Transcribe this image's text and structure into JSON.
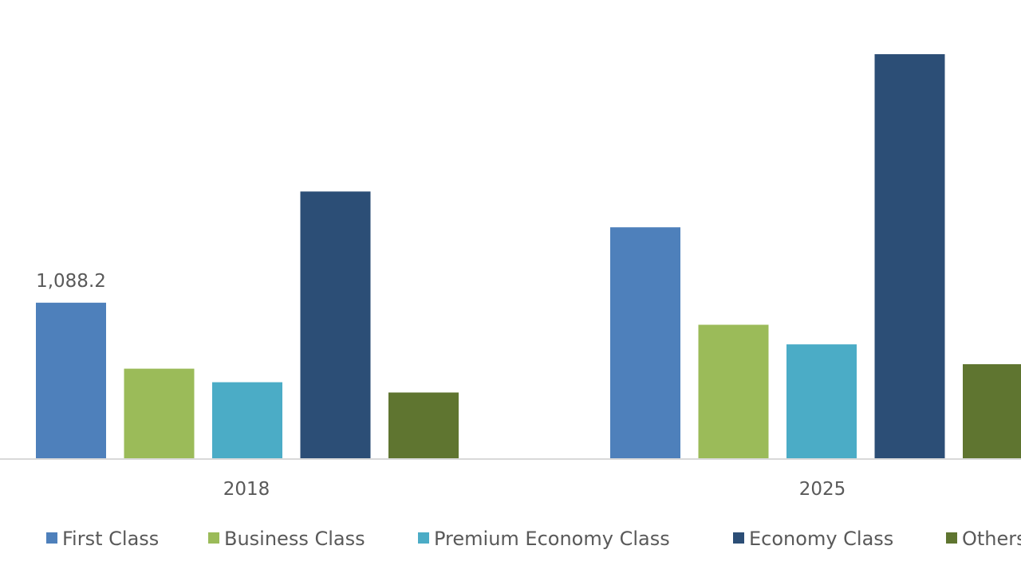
{
  "chart_data": {
    "type": "bar",
    "categories": [
      "2018",
      "2025"
    ],
    "series": [
      {
        "name": "First Class",
        "color": "#4e80bb",
        "values": [
          1088.2,
          1616
        ]
      },
      {
        "name": "Business Class",
        "color": "#9bbb59",
        "values": [
          627,
          934
        ]
      },
      {
        "name": "Premium Economy Class",
        "color": "#4bacc6",
        "values": [
          532,
          797
        ]
      },
      {
        "name": "Economy Class",
        "color": "#2c4e76",
        "values": [
          1866,
          2827
        ]
      },
      {
        "name": "Others",
        "color": "#5f7530",
        "values": [
          460,
          658
        ]
      }
    ],
    "data_labels": [
      {
        "series": 0,
        "category": 0,
        "text": "1,088.2"
      }
    ],
    "title": "",
    "xlabel": "",
    "ylabel": "",
    "ylim": [
      0,
      2900
    ],
    "grid": false,
    "legend_position": "bottom"
  },
  "colors": {
    "axis": "#d9d9d9",
    "text": "#595959",
    "background": "#ffffff"
  }
}
